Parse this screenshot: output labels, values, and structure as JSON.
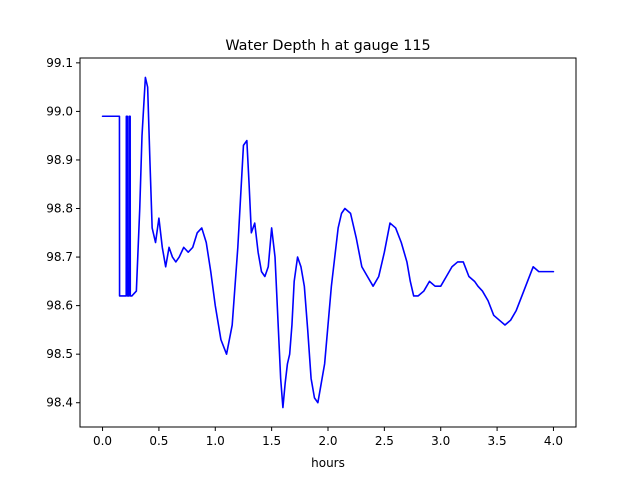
{
  "chart_data": {
    "type": "line",
    "title": "Water Depth h at gauge 115",
    "xlabel": "hours",
    "ylabel": "",
    "xlim": [
      -0.2,
      4.2
    ],
    "ylim": [
      98.35,
      99.11
    ],
    "xticks": [
      0.0,
      0.5,
      1.0,
      1.5,
      2.0,
      2.5,
      3.0,
      3.5,
      4.0
    ],
    "xtick_labels": [
      "0.0",
      "0.5",
      "1.0",
      "1.5",
      "2.0",
      "2.5",
      "3.0",
      "3.5",
      "4.0"
    ],
    "yticks": [
      98.4,
      98.5,
      98.6,
      98.7,
      98.8,
      98.9,
      99.0,
      99.1
    ],
    "ytick_labels": [
      "98.4",
      "98.5",
      "98.6",
      "98.7",
      "98.8",
      "98.9",
      "99.0",
      "99.1"
    ],
    "grid": false,
    "series": [
      {
        "color": "#0000ff",
        "x": [
          0.0,
          0.15,
          0.151,
          0.21,
          0.211,
          0.22,
          0.221,
          0.235,
          0.236,
          0.245,
          0.246,
          0.26,
          0.3,
          0.33,
          0.35,
          0.38,
          0.4,
          0.42,
          0.44,
          0.47,
          0.5,
          0.53,
          0.56,
          0.59,
          0.62,
          0.65,
          0.68,
          0.72,
          0.76,
          0.8,
          0.84,
          0.88,
          0.92,
          0.96,
          1.0,
          1.05,
          1.1,
          1.15,
          1.2,
          1.25,
          1.28,
          1.3,
          1.32,
          1.35,
          1.38,
          1.41,
          1.44,
          1.47,
          1.5,
          1.53,
          1.56,
          1.58,
          1.6,
          1.62,
          1.64,
          1.66,
          1.68,
          1.7,
          1.73,
          1.76,
          1.79,
          1.82,
          1.85,
          1.88,
          1.91,
          1.94,
          1.97,
          2.0,
          2.03,
          2.06,
          2.09,
          2.12,
          2.15,
          2.2,
          2.25,
          2.3,
          2.35,
          2.4,
          2.45,
          2.5,
          2.55,
          2.6,
          2.65,
          2.7,
          2.73,
          2.76,
          2.8,
          2.85,
          2.9,
          2.95,
          3.0,
          3.05,
          3.1,
          3.15,
          3.2,
          3.25,
          3.3,
          3.33,
          3.37,
          3.42,
          3.47,
          3.52,
          3.57,
          3.62,
          3.67,
          3.72,
          3.77,
          3.82,
          3.87,
          3.92,
          3.97,
          4.0
        ],
        "y": [
          98.99,
          98.99,
          98.62,
          98.62,
          98.99,
          98.99,
          98.62,
          98.62,
          98.99,
          98.99,
          98.62,
          98.62,
          98.63,
          98.8,
          98.95,
          99.07,
          99.05,
          98.9,
          98.76,
          98.73,
          98.78,
          98.72,
          98.68,
          98.72,
          98.7,
          98.69,
          98.7,
          98.72,
          98.71,
          98.72,
          98.75,
          98.76,
          98.73,
          98.67,
          98.6,
          98.53,
          98.5,
          98.56,
          98.72,
          98.93,
          98.94,
          98.85,
          98.75,
          98.77,
          98.71,
          98.67,
          98.66,
          98.68,
          98.76,
          98.7,
          98.55,
          98.45,
          98.39,
          98.44,
          98.48,
          98.5,
          98.56,
          98.65,
          98.7,
          98.68,
          98.64,
          98.55,
          98.45,
          98.41,
          98.4,
          98.44,
          98.48,
          98.56,
          98.64,
          98.7,
          98.76,
          98.79,
          98.8,
          98.79,
          98.74,
          98.68,
          98.66,
          98.64,
          98.66,
          98.71,
          98.77,
          98.76,
          98.73,
          98.69,
          98.65,
          98.62,
          98.62,
          98.63,
          98.65,
          98.64,
          98.64,
          98.66,
          98.68,
          98.69,
          98.69,
          98.66,
          98.65,
          98.64,
          98.63,
          98.61,
          98.58,
          98.57,
          98.56,
          98.57,
          98.59,
          98.62,
          98.65,
          98.68,
          98.67,
          98.67,
          98.67,
          98.67
        ]
      }
    ]
  }
}
